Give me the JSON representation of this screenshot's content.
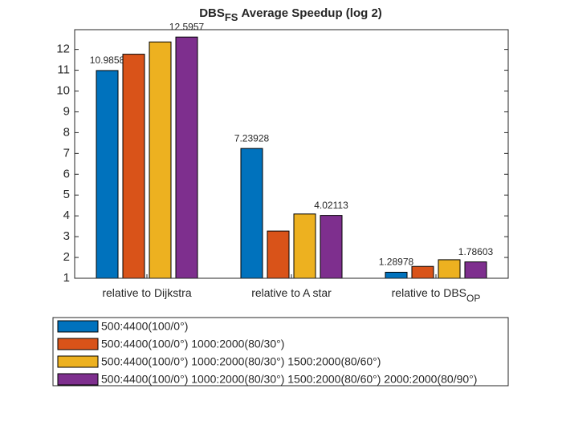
{
  "chart_data": {
    "type": "bar",
    "title": "DBS",
    "title_subscript": "FS",
    "title_rest": "Average Speedup (log 2)",
    "categories": [
      "relative to Dijkstra",
      "relative to A star",
      "relative to DBS"
    ],
    "category_subscripts": [
      null,
      null,
      "OP"
    ],
    "series": [
      {
        "name": "500:4400(100/0°)",
        "color": "#0072BD",
        "values": [
          10.9858,
          7.23928,
          1.28978
        ],
        "show_labels": true
      },
      {
        "name": "500:4400(100/0°) 1000:2000(80/30°)",
        "color": "#D95319",
        "values": [
          11.77,
          3.27,
          1.57
        ],
        "show_labels": false
      },
      {
        "name": "500:4400(100/0°) 1000:2000(80/30°) 1500:2000(80/60°)",
        "color": "#EDB120",
        "values": [
          12.36,
          4.09,
          1.89
        ],
        "show_labels": false
      },
      {
        "name": "500:4400(100/0°) 1000:2000(80/30°) 1500:2000(80/60°) 2000:2000(80/90°)",
        "color": "#7E2F8E",
        "values": [
          12.5957,
          4.02113,
          1.78603
        ],
        "show_labels": true
      }
    ],
    "ylim": [
      1,
      12.95
    ],
    "yticks": [
      1,
      2,
      3,
      4,
      5,
      6,
      7,
      8,
      9,
      10,
      11,
      12
    ],
    "legend": "bottom"
  }
}
